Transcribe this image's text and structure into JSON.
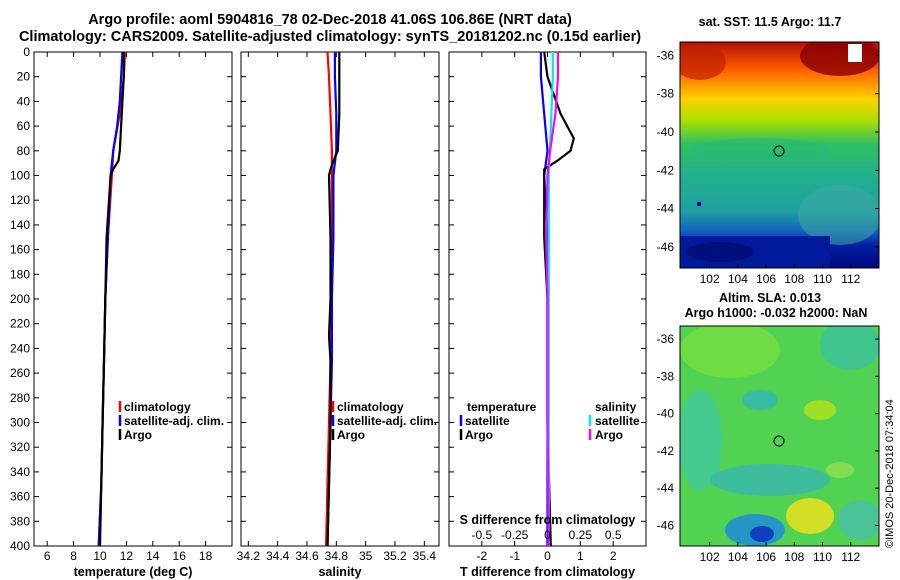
{
  "title_line1": "Argo profile: aoml 5904816_78 02-Dec-2018 41.06S 106.86E (NRT data)",
  "title_line2": "Climatology: CARS2009. Satellite-adjusted climatology: synTS_20181202.nc (0.15d earlier)",
  "colors": {
    "climatology": "#ff0000",
    "satellite": "#0000ff",
    "argo": "#000000",
    "sat_salinity": "#00e5ff",
    "argo_salinity": "#ff00ff"
  },
  "chart_data": [
    {
      "type": "line",
      "id": "temperature",
      "xlabel": "temperature (deg C)",
      "xlim": [
        5,
        20
      ],
      "xticks": [
        6,
        8,
        10,
        12,
        14,
        16,
        18
      ],
      "ylim": [
        0,
        400
      ],
      "yticks": [
        0,
        20,
        40,
        60,
        80,
        100,
        120,
        140,
        160,
        180,
        200,
        220,
        240,
        260,
        280,
        300,
        320,
        340,
        360,
        380,
        400
      ],
      "legend": [
        "climatology",
        "satellite-adj. clim.",
        "Argo"
      ],
      "series": [
        {
          "name": "climatology",
          "depth": [
            0,
            20,
            50,
            80,
            100,
            150,
            200,
            250,
            300,
            350,
            400
          ],
          "values": [
            11.9,
            11.8,
            11.5,
            11.0,
            10.9,
            10.6,
            10.4,
            10.3,
            10.2,
            10.1,
            9.9
          ]
        },
        {
          "name": "satellite-adj. clim.",
          "depth": [
            0,
            20,
            40,
            60,
            80,
            100,
            150,
            200,
            250,
            300,
            350,
            400
          ],
          "values": [
            11.7,
            11.6,
            11.5,
            11.3,
            11.0,
            10.8,
            10.6,
            10.4,
            10.3,
            10.2,
            10.1,
            9.9
          ]
        },
        {
          "name": "Argo",
          "depth": [
            0,
            20,
            40,
            60,
            80,
            88,
            95,
            100,
            150,
            200,
            250,
            300,
            350,
            400
          ],
          "values": [
            11.8,
            11.8,
            11.7,
            11.6,
            11.5,
            11.4,
            11.0,
            10.8,
            10.5,
            10.4,
            10.3,
            10.2,
            10.1,
            10.0
          ]
        }
      ]
    },
    {
      "type": "line",
      "id": "salinity",
      "xlabel": "salinity",
      "xlim": [
        34.15,
        35.5
      ],
      "xticks": [
        34.2,
        34.4,
        34.6,
        34.8,
        35,
        35.2,
        35.4
      ],
      "xticklabels": [
        "34.2",
        "34.4",
        "34.6",
        "34.8",
        "35",
        "35.2",
        "35.4"
      ],
      "ylim": [
        0,
        400
      ],
      "legend": [
        "climatology",
        "satellite-adj. clim.",
        "Argo"
      ],
      "series": [
        {
          "name": "climatology",
          "depth": [
            0,
            20,
            50,
            80,
            100,
            150,
            200,
            250,
            300,
            350,
            400
          ],
          "values": [
            34.74,
            34.75,
            34.76,
            34.77,
            34.77,
            34.77,
            34.77,
            34.76,
            34.75,
            34.74,
            34.73
          ]
        },
        {
          "name": "satellite-adj. clim.",
          "depth": [
            0,
            20,
            50,
            80,
            100,
            150,
            200,
            250,
            300,
            350,
            400
          ],
          "values": [
            34.79,
            34.79,
            34.8,
            34.8,
            34.78,
            34.78,
            34.77,
            34.77,
            34.76,
            34.75,
            34.74
          ]
        },
        {
          "name": "Argo",
          "depth": [
            0,
            20,
            50,
            80,
            88,
            95,
            100,
            150,
            200,
            230,
            250,
            300,
            350,
            400
          ],
          "values": [
            34.82,
            34.82,
            34.82,
            34.81,
            34.78,
            34.76,
            34.75,
            34.76,
            34.76,
            34.75,
            34.76,
            34.76,
            34.75,
            34.74
          ]
        }
      ]
    },
    {
      "type": "line",
      "id": "difference",
      "xlabel": "T difference from climatology",
      "top_label": "S difference from climatology",
      "xlim": [
        -3,
        3
      ],
      "xticks": [
        -2,
        -1,
        0,
        1,
        2
      ],
      "s_xticks": [
        -0.5,
        -0.25,
        0,
        0.25,
        0.5
      ],
      "s_xticklabels": [
        "-0.5",
        "-0.25",
        "0",
        "0.25",
        "0.5"
      ],
      "ylim": [
        0,
        400
      ],
      "legend_left_title": "temperature",
      "legend_right_title": "salinity",
      "legend_left": [
        "satellite",
        "Argo"
      ],
      "legend_right": [
        "satellite",
        "Argo"
      ],
      "series": [
        {
          "name": "T satellite",
          "depth": [
            0,
            20,
            50,
            80,
            100,
            150,
            200,
            300,
            400
          ],
          "values": [
            -0.2,
            -0.2,
            -0.1,
            0.0,
            -0.1,
            0.0,
            0.0,
            0.0,
            0.0
          ]
        },
        {
          "name": "T Argo",
          "depth": [
            0,
            20,
            50,
            70,
            80,
            88,
            95,
            100,
            150,
            200,
            300,
            400
          ],
          "values": [
            -0.1,
            0.0,
            0.4,
            0.8,
            0.7,
            0.3,
            -0.1,
            -0.1,
            -0.1,
            0.0,
            0.0,
            0.1
          ]
        },
        {
          "name": "S satellite",
          "depth": [
            0,
            20,
            50,
            100,
            200,
            300,
            400
          ],
          "values": [
            0.04,
            0.04,
            0.03,
            0.01,
            0.01,
            0.01,
            0.01
          ]
        },
        {
          "name": "S Argo",
          "depth": [
            0,
            20,
            50,
            80,
            100,
            150,
            200,
            300,
            400
          ],
          "values": [
            0.08,
            0.08,
            0.06,
            0.02,
            0.0,
            -0.01,
            0.0,
            0.0,
            0.01
          ]
        }
      ]
    }
  ],
  "sst_map": {
    "title": "sat. SST: 11.5 Argo: 11.7",
    "xticks": [
      "102",
      "104",
      "106",
      "108",
      "110",
      "112"
    ],
    "yticks": [
      "-36",
      "-38",
      "-40",
      "-42",
      "-44",
      "-46"
    ]
  },
  "sla_map": {
    "title1": "Altim. SLA: 0.013",
    "title2": "Argo h1000: -0.032 h2000: NaN",
    "xticks": [
      "102",
      "104",
      "106",
      "108",
      "110",
      "112"
    ],
    "yticks": [
      "-36",
      "-38",
      "-40",
      "-42",
      "-44",
      "-46"
    ]
  },
  "credit": "©IMOS 20-Dec-2018 07:34:04"
}
